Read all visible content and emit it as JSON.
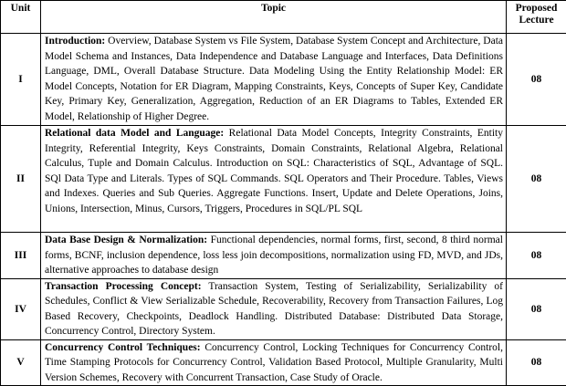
{
  "headers": {
    "unit": "Unit",
    "topic": "Topic",
    "proposed": "Proposed",
    "lecture": "Lecture"
  },
  "rows": [
    {
      "unit": "I",
      "heading": "Introduction:",
      "text": " Overview, Database System vs File System, Database System Concept and Architecture, Data Model Schema and Instances, Data Independence and Database Language and Interfaces, Data Definitions Language, DML, Overall Database Structure. Data Modeling Using the Entity Relationship Model: ER Model Concepts, Notation for ER Diagram, Mapping Constraints, Keys, Concepts of Super Key, Candidate Key, Primary Key, Generalization, Aggregation, Reduction of an ER Diagrams to Tables, Extended ER Model, Relationship of Higher Degree.",
      "lectures": "08"
    },
    {
      "unit": "II",
      "heading": "Relational data Model and Language:",
      "text": " Relational Data Model Concepts, Integrity Constraints, Entity Integrity, Referential Integrity, Keys Constraints, Domain Constraints, Relational Algebra, Relational Calculus, Tuple and Domain Calculus. Introduction on SQL: Characteristics of SQL, Advantage of SQL. SQl Data Type and Literals. Types of SQL Commands. SQL Operators and Their Procedure. Tables, Views and Indexes. Queries and Sub Queries. Aggregate Functions. Insert, Update and Delete Operations, Joins, Unions, Intersection, Minus, Cursors, Triggers, Procedures in SQL/PL SQL",
      "lectures": "08"
    },
    {
      "unit": "III",
      "heading": "Data Base Design & Normalization:",
      "text": " Functional dependencies, normal forms, first, second, 8 third normal forms, BCNF, inclusion dependence, loss less join decompositions, normalization using FD, MVD, and JDs, alternative approaches to database design",
      "lectures": "08"
    },
    {
      "unit": "IV",
      "heading": "Transaction Processing Concept:",
      "text": " Transaction System, Testing of Serializability, Serializability of Schedules, Conflict & View Serializable Schedule, Recoverability, Recovery from Transaction Failures, Log Based Recovery, Checkpoints, Deadlock Handling. Distributed Database: Distributed Data Storage, Concurrency Control, Directory System.",
      "lectures": "08"
    },
    {
      "unit": "V",
      "heading": "Concurrency Control Techniques:",
      "text": " Concurrency Control, Locking Techniques for Concurrency Control, Time Stamping Protocols for Concurrency Control, Validation Based Protocol, Multiple Granularity, Multi Version Schemes, Recovery with Concurrent Transaction, Case Study of Oracle.",
      "lectures": "08"
    }
  ]
}
